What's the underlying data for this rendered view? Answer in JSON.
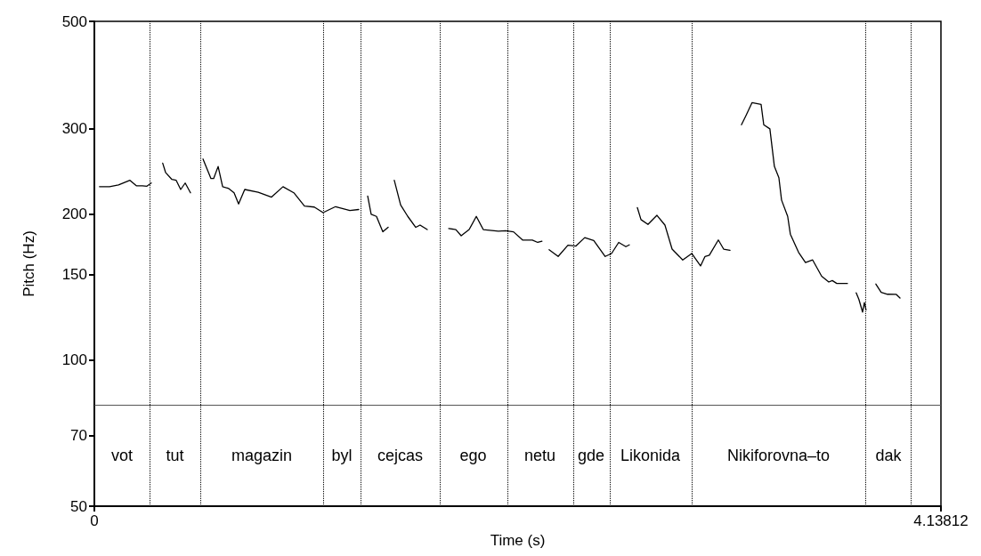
{
  "chart_data": {
    "type": "line",
    "xlabel": "Time (s)",
    "ylabel": "Pitch (Hz)",
    "log": "y",
    "xlim": [
      0,
      4.13812
    ],
    "xticks": [
      0,
      4.13812
    ],
    "ylim": [
      50,
      500
    ],
    "yticks": [
      50,
      70,
      100,
      150,
      200,
      300,
      500
    ],
    "grid": false,
    "marker": "none",
    "line_style": "solid",
    "series": [
      {
        "color": "#000000",
        "x": [
          0.025,
          0.074,
          0.118,
          0.174,
          0.205,
          0.235,
          0.257,
          0.278,
          0.306,
          0.334,
          0.348,
          0.379,
          0.4,
          0.422,
          0.444,
          0.47,
          0.5,
          0.531,
          0.57,
          0.583,
          0.605,
          0.627,
          0.657,
          0.683,
          0.705,
          0.735,
          0.801,
          0.866,
          0.922,
          0.975,
          1.027,
          1.075,
          1.118,
          1.179,
          1.249,
          1.292,
          1.314,
          1.336,
          1.353,
          1.379,
          1.41,
          1.436,
          1.451,
          1.466,
          1.497,
          1.532,
          1.571,
          1.592,
          1.627,
          1.68,
          1.732,
          1.767,
          1.793,
          1.832,
          1.867,
          1.901,
          1.975,
          2.01,
          2.049,
          2.093,
          2.141,
          2.167,
          2.188,
          2.205,
          2.223,
          2.267,
          2.315,
          2.354,
          2.397,
          2.441,
          2.497,
          2.528,
          2.563,
          2.598,
          2.615,
          2.635,
          2.654,
          2.672,
          2.706,
          2.75,
          2.789,
          2.824,
          2.876,
          2.92,
          2.963,
          2.985,
          3.006,
          3.05,
          3.076,
          3.107,
          3.135,
          3.163,
          3.185,
          3.215,
          3.259,
          3.272,
          3.302,
          3.324,
          3.346,
          3.359,
          3.389,
          3.402,
          3.442,
          3.476,
          3.511,
          3.555,
          3.59,
          3.607,
          3.629,
          3.681,
          3.7,
          3.724,
          3.737,
          3.755,
          3.764,
          3.772,
          3.795,
          3.82,
          3.846,
          3.877,
          3.92,
          3.938
        ],
        "values": [
          228,
          228,
          230,
          235,
          229,
          229,
          228.5,
          232,
          null,
          255,
          244,
          236,
          235,
          225,
          232,
          221.5,
          null,
          260,
          237,
          237,
          251,
          228,
          226,
          221.5,
          210,
          225,
          222,
          217,
          228,
          221.5,
          208,
          207,
          201.6,
          207.4,
          203.6,
          204.6,
          null,
          218,
          200,
          198,
          184,
          188,
          null,
          235,
          209,
          198,
          188,
          190,
          186,
          null,
          187,
          186,
          180.6,
          186,
          198,
          186,
          184.5,
          185,
          184,
          177,
          177,
          175,
          176,
          null,
          169,
          163.7,
          172.7,
          172,
          179,
          176.5,
          163.7,
          166,
          175,
          171.5,
          173,
          null,
          206.5,
          195,
          190.6,
          199,
          190,
          169.5,
          161,
          166,
          156.5,
          163.7,
          164.7,
          177,
          169.5,
          168.5,
          null,
          306,
          319.5,
          340,
          337,
          306,
          300,
          251,
          238,
          214,
          198,
          182,
          167,
          159,
          161,
          149,
          145,
          146,
          144,
          144,
          null,
          137.7,
          133.5,
          125.7,
          131.5,
          127,
          null,
          143.6,
          138,
          136.8,
          136.7,
          134.4
        ]
      }
    ],
    "ref_lines": [
      {
        "axis": "x",
        "value": 0.27,
        "line_style": "dotted",
        "color": "#000000"
      },
      {
        "axis": "x",
        "value": 0.518,
        "line_style": "dotted",
        "color": "#000000"
      },
      {
        "axis": "x",
        "value": 1.118,
        "line_style": "dotted",
        "color": "#000000"
      },
      {
        "axis": "x",
        "value": 1.301,
        "line_style": "dotted",
        "color": "#000000"
      },
      {
        "axis": "x",
        "value": 1.688,
        "line_style": "dotted",
        "color": "#000000"
      },
      {
        "axis": "x",
        "value": 2.015,
        "line_style": "dotted",
        "color": "#000000"
      },
      {
        "axis": "x",
        "value": 2.341,
        "line_style": "dotted",
        "color": "#000000"
      },
      {
        "axis": "x",
        "value": 2.515,
        "line_style": "dotted",
        "color": "#000000"
      },
      {
        "axis": "x",
        "value": 2.92,
        "line_style": "dotted",
        "color": "#000000"
      },
      {
        "axis": "x",
        "value": 3.768,
        "line_style": "dotted",
        "color": "#000000"
      },
      {
        "axis": "x",
        "value": 3.994,
        "line_style": "dotted",
        "color": "#000000"
      },
      {
        "axis": "y",
        "value": 81,
        "line_style": "solid",
        "color": "#555555"
      }
    ],
    "annotations": [
      "vot",
      "tut",
      "magazin",
      "byl",
      "cejcas",
      "ego",
      "netu",
      "gde",
      "Likonida",
      "Nikiforovna–to",
      "dak"
    ]
  }
}
